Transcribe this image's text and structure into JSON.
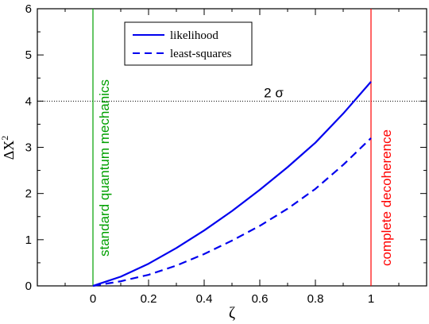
{
  "chart_data": {
    "type": "line",
    "xlabel": "ζ",
    "ylabel": "ΔX",
    "ylabel_superscript": "2",
    "xlim": [
      -0.2,
      1.2
    ],
    "ylim": [
      0,
      6
    ],
    "x_ticks": [
      0,
      0.2,
      0.4,
      0.6,
      0.8,
      1
    ],
    "x_tick_labels": [
      "0",
      "0.2",
      "0.4",
      "0.6",
      "0.8",
      "1"
    ],
    "y_ticks": [
      0,
      1,
      2,
      3,
      4,
      5,
      6
    ],
    "y_tick_labels": [
      "0",
      "1",
      "2",
      "3",
      "4",
      "5",
      "6"
    ],
    "grid": false,
    "legend_position": "top-center",
    "series": [
      {
        "name": "likelihood",
        "style": "solid",
        "color": "#0000ee",
        "x": [
          0,
          0.1,
          0.2,
          0.3,
          0.4,
          0.5,
          0.6,
          0.7,
          0.8,
          0.9,
          1.0
        ],
        "y": [
          0,
          0.2,
          0.48,
          0.82,
          1.2,
          1.62,
          2.08,
          2.57,
          3.1,
          3.73,
          4.42
        ]
      },
      {
        "name": "least-squares",
        "style": "dashed",
        "color": "#0000ee",
        "x": [
          0,
          0.1,
          0.2,
          0.3,
          0.4,
          0.5,
          0.6,
          0.7,
          0.8,
          0.9,
          1.0
        ],
        "y": [
          0,
          0.1,
          0.24,
          0.44,
          0.69,
          0.98,
          1.3,
          1.67,
          2.1,
          2.62,
          3.2
        ]
      }
    ],
    "reference_lines": [
      {
        "orientation": "horizontal",
        "value": 4,
        "style": "dotted",
        "color": "#000000",
        "label": "2 σ"
      },
      {
        "orientation": "vertical",
        "value": 0,
        "color": "#00a000",
        "label": "standard quantum mechanics"
      },
      {
        "orientation": "vertical",
        "value": 1,
        "color": "#ff0000",
        "label": "complete decoherence"
      }
    ]
  }
}
